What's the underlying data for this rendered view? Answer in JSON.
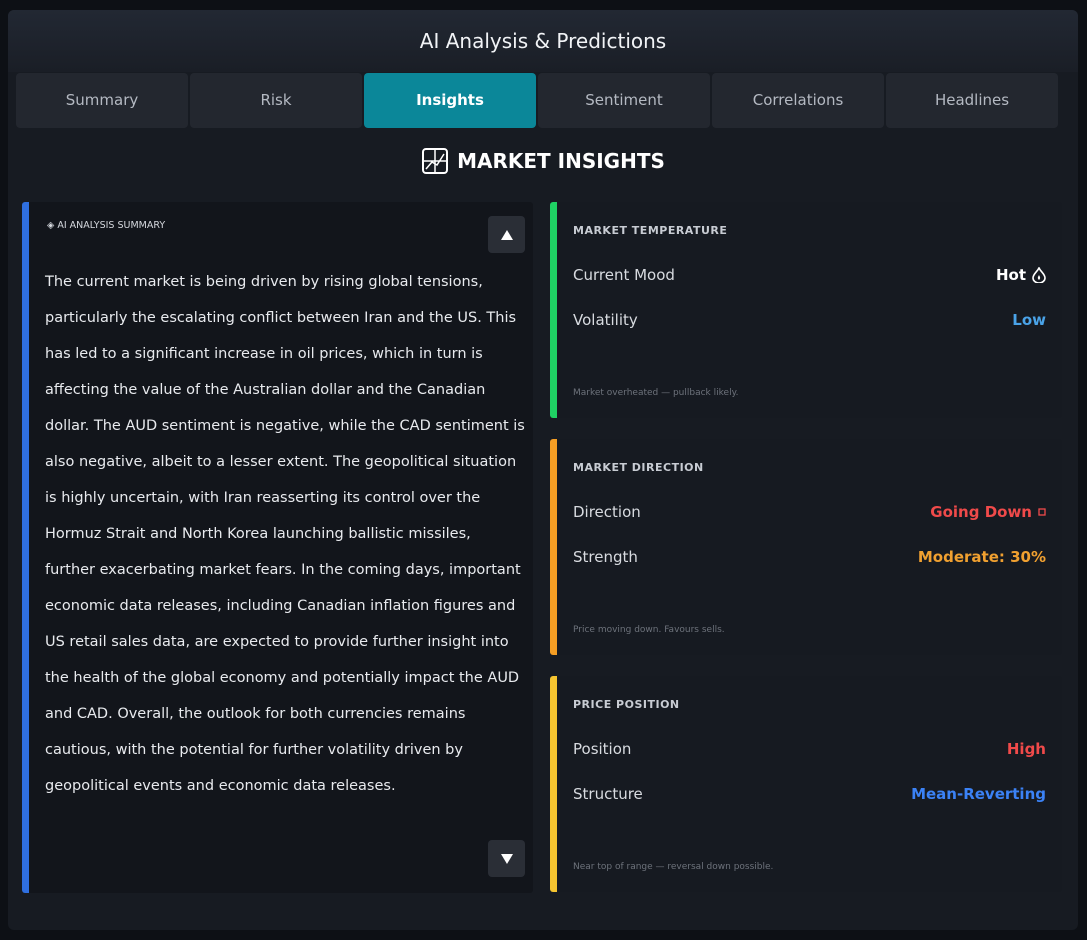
{
  "header": {
    "title": "AI Analysis & Predictions"
  },
  "tabs": {
    "items": [
      "Summary",
      "Risk",
      "Insights",
      "Sentiment",
      "Correlations",
      "Headlines"
    ],
    "active": 2
  },
  "section": {
    "title": "MARKET INSIGHTS"
  },
  "summary": {
    "label": "AI ANALYSIS SUMMARY",
    "accent": "#2f6fe0",
    "text": "The current market is being driven by rising global tensions, particularly the escalating conflict between Iran and the US. This has led to a significant increase in oil prices, which in turn is affecting the value of the Australian dollar and the Canadian dollar. The AUD sentiment is negative, while the CAD sentiment is also negative, albeit to a lesser extent. The geopolitical situation is highly uncertain, with Iran reasserting its control over the Hormuz Strait and North Korea launching ballistic missiles, further exacerbating market fears. In the coming days, important economic data releases, including Canadian inflation figures and US retail sales data, are expected to provide further insight into the health of the global economy and potentially impact the AUD and CAD. Overall, the outlook for both currencies remains cautious, with the potential for further volatility driven by geopolitical events and economic data releases."
  },
  "cards": [
    {
      "title": "MARKET TEMPERATURE",
      "accent": "#1fd264",
      "rows": [
        {
          "label": "Current Mood",
          "value": "Hot",
          "color": "#ffffff"
        },
        {
          "label": "Volatility",
          "value": "Low",
          "color": "#4aa3e8"
        }
      ],
      "note": "Market overheated — pullback likely."
    },
    {
      "title": "MARKET DIRECTION",
      "accent": "#f59e24",
      "rows": [
        {
          "label": "Direction",
          "value": "Going Down",
          "color": "#f04a4a"
        },
        {
          "label": "Strength",
          "value": "Moderate: 30%",
          "color": "#f0a030"
        }
      ],
      "note": "Price moving down. Favours sells."
    },
    {
      "title": "PRICE POSITION",
      "accent": "#f5c430",
      "rows": [
        {
          "label": "Position",
          "value": "High",
          "color": "#f04a4a"
        },
        {
          "label": "Structure",
          "value": "Mean-Reverting",
          "color": "#3b82f6"
        }
      ],
      "note": "Near top of range — reversal down possible."
    }
  ]
}
